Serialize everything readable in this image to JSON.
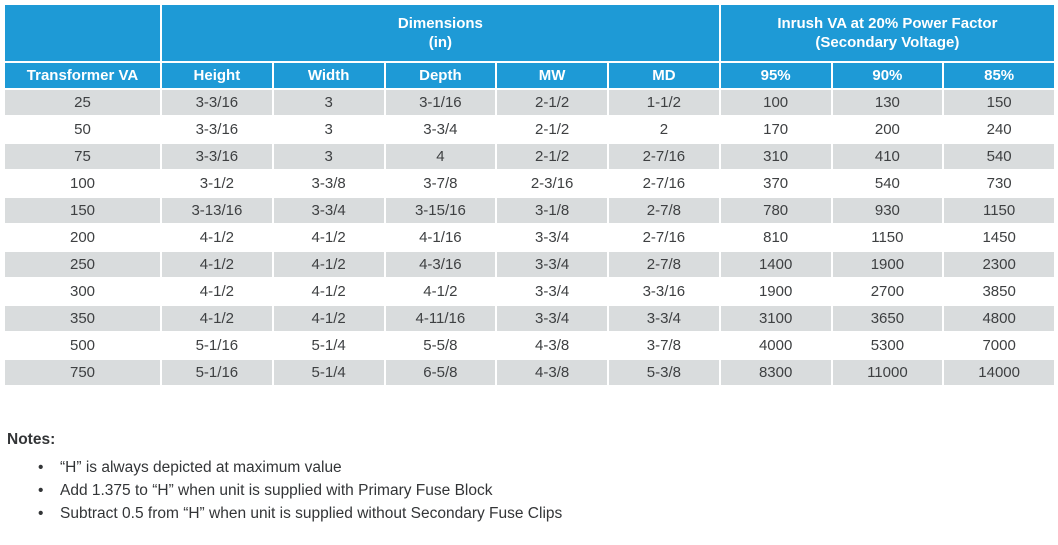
{
  "colors": {
    "header_blue": "#1E9AD6",
    "row_alt_gray": "#D9DCDD",
    "header_text": "#FFFFFF",
    "body_text": "#3E4042",
    "notes_text": "#333537"
  },
  "table": {
    "group_headers": {
      "dimensions": {
        "line1": "Dimensions",
        "line2": "(in)"
      },
      "inrush": {
        "line1": "Inrush VA at 20% Power Factor",
        "line2": "(Secondary Voltage)"
      }
    },
    "columns": [
      "Transformer VA",
      "Height",
      "Width",
      "Depth",
      "MW",
      "MD",
      "95%",
      "90%",
      "85%"
    ],
    "rows": [
      [
        "25",
        "3-3/16",
        "3",
        "3-1/16",
        "2-1/2",
        "1-1/2",
        "100",
        "130",
        "150"
      ],
      [
        "50",
        "3-3/16",
        "3",
        "3-3/4",
        "2-1/2",
        "2",
        "170",
        "200",
        "240"
      ],
      [
        "75",
        "3-3/16",
        "3",
        "4",
        "2-1/2",
        "2-7/16",
        "310",
        "410",
        "540"
      ],
      [
        "100",
        "3-1/2",
        "3-3/8",
        "3-7/8",
        "2-3/16",
        "2-7/16",
        "370",
        "540",
        "730"
      ],
      [
        "150",
        "3-13/16",
        "3-3/4",
        "3-15/16",
        "3-1/8",
        "2-7/8",
        "780",
        "930",
        "1150"
      ],
      [
        "200",
        "4-1/2",
        "4-1/2",
        "4-1/16",
        "3-3/4",
        "2-7/16",
        "810",
        "1150",
        "1450"
      ],
      [
        "250",
        "4-1/2",
        "4-1/2",
        "4-3/16",
        "3-3/4",
        "2-7/8",
        "1400",
        "1900",
        "2300"
      ],
      [
        "300",
        "4-1/2",
        "4-1/2",
        "4-1/2",
        "3-3/4",
        "3-3/16",
        "1900",
        "2700",
        "3850"
      ],
      [
        "350",
        "4-1/2",
        "4-1/2",
        "4-11/16",
        "3-3/4",
        "3-3/4",
        "3100",
        "3650",
        "4800"
      ],
      [
        "500",
        "5-1/16",
        "5-1/4",
        "5-5/8",
        "4-3/8",
        "3-7/8",
        "4000",
        "5300",
        "7000"
      ],
      [
        "750",
        "5-1/16",
        "5-1/4",
        "6-5/8",
        "4-3/8",
        "5-3/8",
        "8300",
        "11000",
        "14000"
      ]
    ]
  },
  "notes": {
    "title": "Notes:",
    "items": [
      "“H” is always depicted at maximum value",
      "Add 1.375 to “H” when unit is supplied with Primary Fuse Block",
      "Subtract 0.5 from “H” when unit is supplied without Secondary Fuse Clips"
    ]
  }
}
